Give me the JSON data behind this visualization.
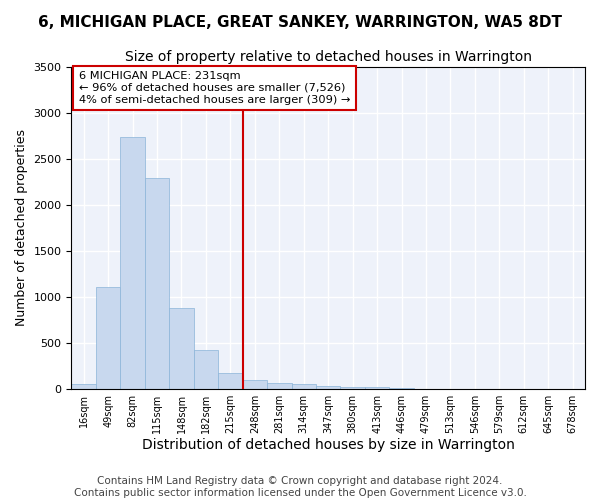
{
  "title": "6, MICHIGAN PLACE, GREAT SANKEY, WARRINGTON, WA5 8DT",
  "subtitle": "Size of property relative to detached houses in Warrington",
  "xlabel": "Distribution of detached houses by size in Warrington",
  "ylabel": "Number of detached properties",
  "bar_color": "#c8d8ee",
  "bar_edge_color": "#8ab4d8",
  "background_color": "#eef2fa",
  "grid_color": "#ffffff",
  "categories": [
    "16sqm",
    "49sqm",
    "82sqm",
    "115sqm",
    "148sqm",
    "182sqm",
    "215sqm",
    "248sqm",
    "281sqm",
    "314sqm",
    "347sqm",
    "380sqm",
    "413sqm",
    "446sqm",
    "479sqm",
    "513sqm",
    "546sqm",
    "579sqm",
    "612sqm",
    "645sqm",
    "678sqm"
  ],
  "bin_edges": [
    0,
    33,
    66,
    99,
    132,
    165,
    198,
    231,
    264,
    297,
    330,
    363,
    396,
    429,
    462,
    495,
    528,
    561,
    594,
    627,
    660,
    693
  ],
  "values": [
    50,
    1100,
    2730,
    2290,
    880,
    420,
    175,
    100,
    60,
    50,
    30,
    20,
    20,
    5,
    0,
    0,
    0,
    0,
    0,
    0,
    0
  ],
  "property_size_label": "231sqm",
  "property_label": "6 MICHIGAN PLACE: 231sqm",
  "smaller_pct": 96,
  "smaller_count": "7,526",
  "larger_pct": 4,
  "larger_count": 309,
  "vline_color": "#cc0000",
  "annotation_box_color": "#cc0000",
  "ylim": [
    0,
    3500
  ],
  "yticks": [
    0,
    500,
    1000,
    1500,
    2000,
    2500,
    3000,
    3500
  ],
  "footer": "Contains HM Land Registry data © Crown copyright and database right 2024.\nContains public sector information licensed under the Open Government Licence v3.0.",
  "footer_fontsize": 7.5,
  "title_fontsize": 11,
  "subtitle_fontsize": 10,
  "xlabel_fontsize": 10,
  "ylabel_fontsize": 9
}
